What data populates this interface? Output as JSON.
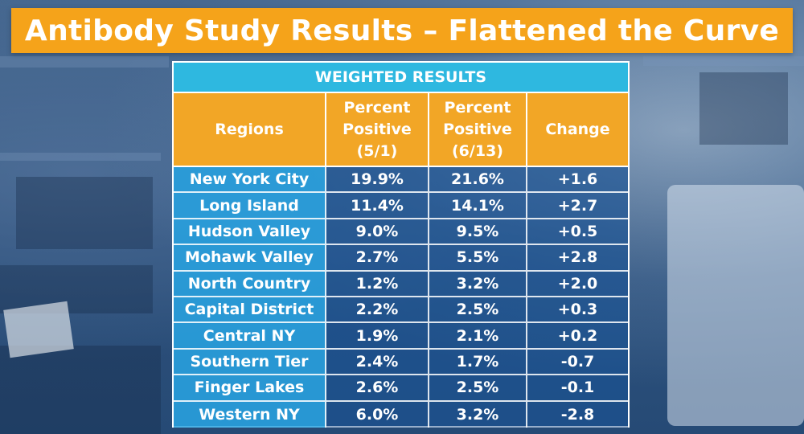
{
  "title": "Antibody Study Results – Flattened the Curve",
  "chart_data": {
    "type": "table",
    "caption": "WEIGHTED RESULTS",
    "columns": [
      "Regions",
      "Percent\nPositive\n(5/1)",
      "Percent\nPositive\n(6/13)",
      "Change"
    ],
    "rows": [
      [
        "New York City",
        "19.9%",
        "21.6%",
        "+1.6"
      ],
      [
        "Long Island",
        "11.4%",
        "14.1%",
        "+2.7"
      ],
      [
        "Hudson Valley",
        "9.0%",
        "9.5%",
        "+0.5"
      ],
      [
        "Mohawk Valley",
        "2.7%",
        "5.5%",
        "+2.8"
      ],
      [
        "North Country",
        "1.2%",
        "3.2%",
        "+2.0"
      ],
      [
        "Capital District",
        "2.2%",
        "2.5%",
        "+0.3"
      ],
      [
        "Central NY",
        "1.9%",
        "2.1%",
        "+0.2"
      ],
      [
        "Southern Tier",
        "2.4%",
        "1.7%",
        "-0.7"
      ],
      [
        "Finger Lakes",
        "2.6%",
        "2.5%",
        "-0.1"
      ],
      [
        "Western NY",
        "6.0%",
        "3.2%",
        "-2.8"
      ]
    ]
  },
  "colors": {
    "title_bg": "#f5a31a",
    "header_bg": "#2eb8e0",
    "column_header_bg": "#f2a626",
    "region_bg": "#29a3e1"
  }
}
